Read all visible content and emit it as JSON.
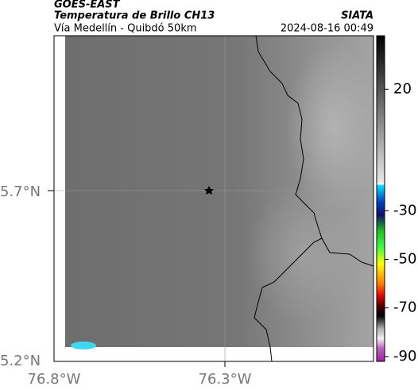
{
  "header": {
    "source": "GOES-EAST",
    "product": "Temperatura de Brillo CH13",
    "org": "SIATA",
    "region": "Vía Medellín - Quibdó 50km",
    "datetime": "2024-08-16 00:49"
  },
  "axes": {
    "lat_labels": [
      "5.7°N",
      "5.2°N"
    ],
    "lon_labels": [
      "76.8°W",
      "76.3°W"
    ]
  },
  "colorbar": {
    "range": [
      -92,
      42
    ],
    "ticks": [
      20,
      -30,
      -50,
      -70,
      -90
    ]
  }
}
